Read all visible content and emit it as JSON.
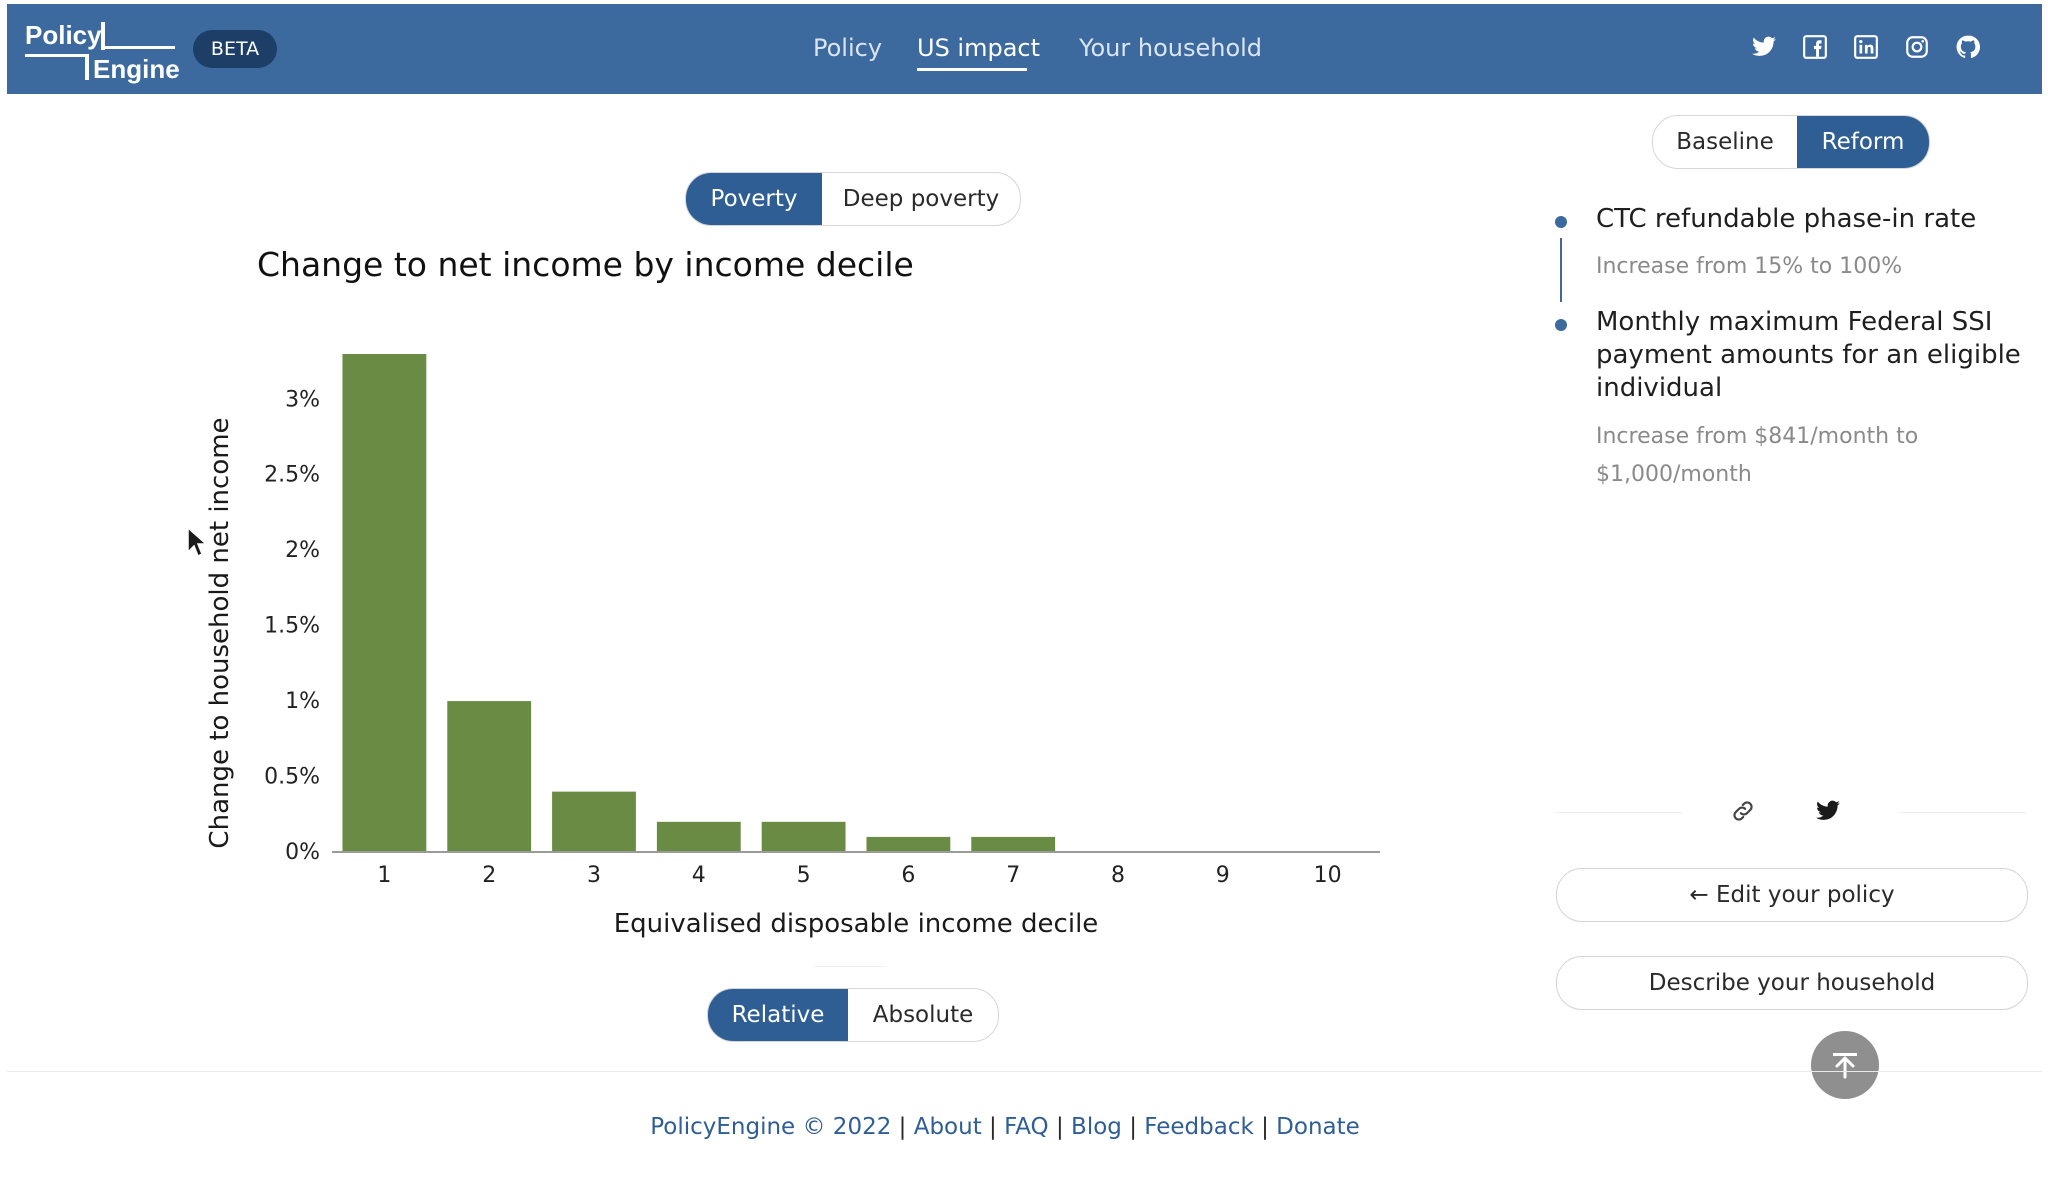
{
  "header": {
    "logo_text": "Policy Engine",
    "beta_label": "BETA",
    "nav": [
      {
        "label": "Policy",
        "active": false
      },
      {
        "label": "US impact",
        "active": true
      },
      {
        "label": "Your household",
        "active": false
      }
    ],
    "social_icons": [
      "twitter-icon",
      "facebook-icon",
      "linkedin-icon",
      "instagram-icon",
      "github-icon"
    ],
    "bar_color": "#3c6a9e"
  },
  "poverty_toggle": {
    "options": [
      "Poverty",
      "Deep poverty"
    ],
    "selected": "Poverty"
  },
  "chart_data": {
    "type": "bar",
    "title": "Change to net income by income decile",
    "xlabel": "Equivalised disposable income decile",
    "ylabel": "Change to household net income",
    "categories": [
      "1",
      "2",
      "3",
      "4",
      "5",
      "6",
      "7",
      "8",
      "9",
      "10"
    ],
    "values": [
      3.3,
      1.0,
      0.4,
      0.2,
      0.2,
      0.1,
      0.1,
      0,
      0,
      0
    ],
    "yticks": [
      "0%",
      "0.5%",
      "1%",
      "1.5%",
      "2%",
      "2.5%",
      "3%"
    ],
    "ylim": [
      0,
      3.3
    ],
    "bar_color": "#6a8b43",
    "grid": false
  },
  "measure_toggle": {
    "options": [
      "Relative",
      "Absolute"
    ],
    "selected": "Relative"
  },
  "baseline_reform_toggle": {
    "options": [
      "Baseline",
      "Reform"
    ],
    "selected": "Reform"
  },
  "provisions": [
    {
      "title": "CTC refundable phase-in rate",
      "description": "Increase from 15% to 100%"
    },
    {
      "title": "Monthly maximum Federal SSI payment amounts for an eligible individual",
      "description": "Increase from $841/month to $1,000/month"
    }
  ],
  "share_icons": [
    "link-icon",
    "twitter-icon"
  ],
  "buttons": {
    "edit_policy": "← Edit your policy",
    "describe_household": "Describe your household"
  },
  "footer": {
    "copyright": "PolicyEngine © 2022",
    "sep": "|",
    "links": [
      "About",
      "FAQ",
      "Blog",
      "Feedback",
      "Donate"
    ]
  }
}
